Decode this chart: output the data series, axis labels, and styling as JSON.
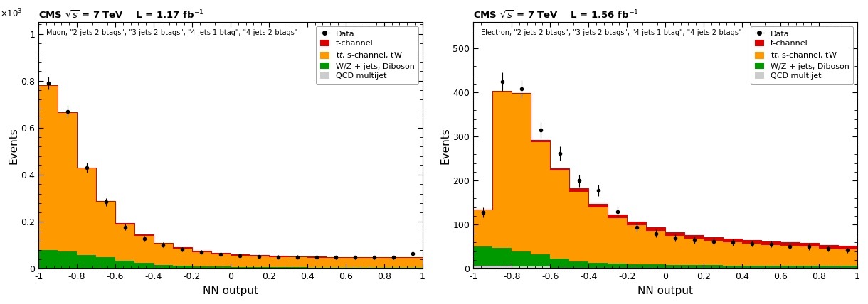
{
  "left_plot": {
    "title_cms": "CMS",
    "title_energy": "$\\sqrt{s}$ = 7 TeV",
    "title_lumi": "L = 1.17 fb$^{-1}$",
    "subtitle": "Muon, \"2-jets 2-btags\", \"3-jets 2-btags\", \"4-jets 1-btag\", \"4-jets 2-btags\"",
    "ylabel": "Events",
    "xlabel": "NN output",
    "ylim": [
      0,
      1050
    ],
    "ytick_vals": [
      0,
      200,
      400,
      600,
      800,
      1000
    ],
    "ytick_labels": [
      "0",
      "0.2",
      "0.4",
      "0.6",
      "0.8",
      "1"
    ],
    "scale_label": "$\\times$10$^{3}$",
    "bin_edges": [
      -1.0,
      -0.9,
      -0.8,
      -0.7,
      -0.6,
      -0.5,
      -0.4,
      -0.3,
      -0.2,
      -0.1,
      0.0,
      0.1,
      0.2,
      0.3,
      0.4,
      0.5,
      0.6,
      0.7,
      0.8,
      0.9,
      1.0
    ],
    "qcd": [
      0,
      0,
      0,
      0,
      0,
      0,
      0,
      0,
      0,
      0,
      0,
      0,
      0,
      0,
      0,
      0,
      0,
      0,
      0,
      0
    ],
    "wz": [
      80,
      75,
      60,
      50,
      35,
      25,
      18,
      14,
      12,
      10,
      8,
      7,
      6,
      6,
      5,
      5,
      5,
      5,
      5,
      5
    ],
    "ttbar": [
      700,
      590,
      370,
      235,
      155,
      115,
      88,
      72,
      60,
      52,
      48,
      46,
      44,
      43,
      42,
      41,
      41,
      41,
      41,
      41
    ],
    "tchan": [
      0,
      0,
      0,
      5,
      5,
      5,
      5,
      5,
      5,
      5,
      5,
      5,
      5,
      5,
      5,
      5,
      5,
      5,
      5,
      5
    ],
    "data": [
      790,
      670,
      430,
      285,
      178,
      128,
      102,
      82,
      72,
      62,
      57,
      53,
      51,
      51,
      51,
      49,
      49,
      49,
      49,
      66
    ],
    "data_err": [
      28,
      26,
      21,
      17,
      13,
      11,
      10,
      9,
      8,
      8,
      7,
      7,
      7,
      7,
      7,
      7,
      7,
      7,
      7,
      8
    ]
  },
  "right_plot": {
    "title_cms": "CMS",
    "title_energy": "$\\sqrt{s}$ = 7 TeV",
    "title_lumi": "L = 1.56 fb$^{-1}$",
    "subtitle": "Electron, \"2-jets 2-btags\", \"3-jets 2-btags\", \"4-jets 1-btag\", \"4-jets 2-btags\"",
    "ylabel": "Events",
    "xlabel": "NN output",
    "ylim": [
      0,
      560
    ],
    "ytick_vals": [
      0,
      100,
      200,
      300,
      400,
      500
    ],
    "ytick_labels": [
      "0",
      "100",
      "200",
      "300",
      "400",
      "500"
    ],
    "bin_edges": [
      -1.0,
      -0.9,
      -0.8,
      -0.7,
      -0.6,
      -0.5,
      -0.4,
      -0.3,
      -0.2,
      -0.1,
      0.0,
      0.1,
      0.2,
      0.3,
      0.4,
      0.5,
      0.6,
      0.7,
      0.8,
      0.9,
      1.0
    ],
    "qcd": [
      8,
      8,
      6,
      5,
      3,
      2,
      2,
      2,
      2,
      2,
      2,
      2,
      2,
      2,
      2,
      2,
      2,
      2,
      2,
      2
    ],
    "wz": [
      42,
      40,
      33,
      28,
      20,
      15,
      12,
      10,
      9,
      8,
      7,
      7,
      7,
      6,
      6,
      5,
      5,
      5,
      5,
      5
    ],
    "ttbar": [
      85,
      355,
      360,
      255,
      200,
      158,
      125,
      103,
      88,
      76,
      66,
      60,
      55,
      52,
      49,
      47,
      45,
      43,
      39,
      37
    ],
    "tchan": [
      0,
      0,
      0,
      5,
      5,
      8,
      8,
      8,
      8,
      8,
      8,
      8,
      8,
      8,
      8,
      8,
      8,
      8,
      8,
      8
    ],
    "data": [
      128,
      425,
      408,
      315,
      262,
      200,
      178,
      130,
      95,
      80,
      70,
      65,
      62,
      60,
      57,
      56,
      51,
      50,
      46,
      42
    ],
    "data_err": [
      12,
      21,
      20,
      18,
      16,
      14,
      13,
      11,
      10,
      9,
      8,
      8,
      8,
      8,
      7,
      7,
      7,
      7,
      7,
      6
    ]
  },
  "colors": {
    "tchan": "#dd0000",
    "ttbar": "#ff9900",
    "wz": "#009900",
    "qcd": "#cccccc",
    "data": "#000000"
  },
  "legend_labels": {
    "data": "Data",
    "tchan": "t-channel",
    "ttbar": "t$\\bar{t}$, s-channel, tW",
    "wz": "W/Z + jets, Diboson",
    "qcd": "QCD multijet"
  },
  "xticks": [
    -1.0,
    -0.8,
    -0.6,
    -0.4,
    -0.2,
    0.0,
    0.2,
    0.4,
    0.6,
    0.8,
    1.0
  ],
  "xtick_labels": [
    "-1",
    "-0.8",
    "-0.6",
    "-0.4",
    "-0.2",
    "0",
    "0.2",
    "0.4",
    "0.6",
    "0.8",
    "1"
  ]
}
